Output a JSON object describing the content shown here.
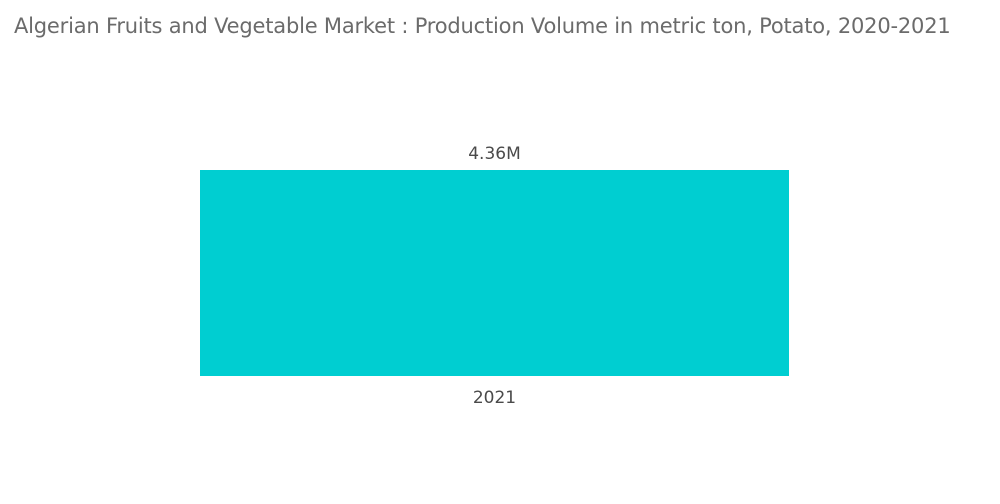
{
  "chart_data": {
    "type": "bar",
    "title": "Algerian Fruits and Vegetable Market : Production Volume in metric ton, Potato, 2020-2021",
    "categories": [
      "2021"
    ],
    "values": [
      4360000
    ],
    "data_labels": [
      "4.36M"
    ],
    "xlabel": "",
    "ylabel": "",
    "ylim": [
      0,
      4360000
    ],
    "grid": false,
    "legend": "none",
    "colors": {
      "bar": "#00ced1",
      "title": "#6b6b6b",
      "label": "#4a4a4a"
    }
  }
}
